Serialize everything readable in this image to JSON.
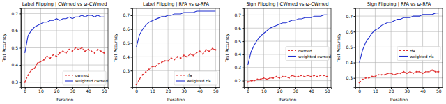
{
  "chart_data": [
    {
      "type": "line",
      "title": "Label Flipping | CWmed vs ω-CWmed",
      "x_label": "Iteration",
      "y_label": "Test Accuracy",
      "x": [
        0,
        2,
        4,
        6,
        8,
        10,
        12,
        14,
        16,
        18,
        20,
        22,
        24,
        26,
        28,
        30,
        32,
        34,
        36,
        38,
        40,
        42,
        44,
        46,
        48,
        50
      ],
      "xlim": [
        -2.5,
        52.5
      ],
      "xticks": [
        0,
        10,
        20,
        30,
        40,
        50
      ],
      "ylim": [
        0.27,
        0.73
      ],
      "yticks": [
        0.3,
        0.4,
        0.5,
        0.6,
        0.7
      ],
      "grid": true,
      "legend": "lower right",
      "series": [
        {
          "name": "cwmed",
          "color": "#e03030",
          "line_style": "dashed",
          "marker": "circle",
          "values": [
            0.3,
            0.34,
            0.37,
            0.38,
            0.41,
            0.42,
            0.43,
            0.45,
            0.44,
            0.46,
            0.45,
            0.47,
            0.48,
            0.47,
            0.49,
            0.48,
            0.5,
            0.49,
            0.5,
            0.48,
            0.49,
            0.48,
            0.47,
            0.49,
            0.48,
            0.47
          ]
        },
        {
          "name": "weighted cwmed",
          "color": "#1f2fd0",
          "line_style": "solid",
          "values": [
            0.47,
            0.57,
            0.6,
            0.62,
            0.63,
            0.64,
            0.65,
            0.65,
            0.66,
            0.66,
            0.67,
            0.66,
            0.67,
            0.67,
            0.68,
            0.67,
            0.68,
            0.68,
            0.69,
            0.68,
            0.69,
            0.69,
            0.68,
            0.69,
            0.68,
            0.68
          ]
        }
      ]
    },
    {
      "type": "line",
      "title": "Label Flipping | RFA vs ω-RFA",
      "x_label": "Iteration",
      "y_label": "Test Accuracy",
      "x": [
        0,
        2,
        4,
        6,
        8,
        10,
        12,
        14,
        16,
        18,
        20,
        22,
        24,
        26,
        28,
        30,
        32,
        34,
        36,
        38,
        40,
        42,
        44,
        46,
        48,
        50
      ],
      "xlim": [
        -2.5,
        52.5
      ],
      "xticks": [
        0,
        10,
        20,
        30,
        40,
        50
      ],
      "ylim": [
        0.18,
        0.75
      ],
      "yticks": [
        0.3,
        0.4,
        0.5,
        0.6,
        0.7
      ],
      "grid": true,
      "legend": "lower right",
      "series": [
        {
          "name": "rfa",
          "color": "#e03030",
          "line_style": "dashed",
          "marker": "circle",
          "values": [
            0.2,
            0.24,
            0.27,
            0.29,
            0.31,
            0.33,
            0.33,
            0.35,
            0.36,
            0.37,
            0.37,
            0.39,
            0.38,
            0.4,
            0.39,
            0.41,
            0.4,
            0.42,
            0.41,
            0.43,
            0.44,
            0.42,
            0.45,
            0.44,
            0.46,
            0.45
          ]
        },
        {
          "name": "weighted rfa",
          "color": "#1f2fd0",
          "line_style": "solid",
          "values": [
            0.47,
            0.56,
            0.6,
            0.63,
            0.65,
            0.66,
            0.67,
            0.68,
            0.69,
            0.69,
            0.7,
            0.7,
            0.71,
            0.71,
            0.71,
            0.72,
            0.72,
            0.72,
            0.72,
            0.73,
            0.73,
            0.73,
            0.73,
            0.73,
            0.73,
            0.73
          ]
        }
      ]
    },
    {
      "type": "line",
      "title": "Sign Flipping | CWmed vs ω-CWmed",
      "x_label": "Iteration",
      "y_label": "Test Accuracy",
      "x": [
        0,
        2,
        4,
        6,
        8,
        10,
        12,
        14,
        16,
        18,
        20,
        22,
        24,
        26,
        28,
        30,
        32,
        34,
        36,
        38,
        40,
        42,
        44,
        46,
        48,
        50
      ],
      "xlim": [
        -2.5,
        52.5
      ],
      "xticks": [
        0,
        10,
        20,
        30,
        40,
        50
      ],
      "ylim": [
        0.15,
        0.75
      ],
      "yticks": [
        0.2,
        0.3,
        0.4,
        0.5,
        0.6,
        0.7
      ],
      "grid": true,
      "legend": "center right",
      "series": [
        {
          "name": "cwmed",
          "color": "#e03030",
          "line_style": "dashed",
          "marker": "circle",
          "values": [
            0.19,
            0.2,
            0.2,
            0.21,
            0.21,
            0.22,
            0.21,
            0.22,
            0.22,
            0.23,
            0.22,
            0.23,
            0.23,
            0.22,
            0.24,
            0.23,
            0.23,
            0.24,
            0.23,
            0.24,
            0.23,
            0.24,
            0.23,
            0.24,
            0.24,
            0.23
          ]
        },
        {
          "name": "weighted cwmed",
          "color": "#1f2fd0",
          "line_style": "solid",
          "values": [
            0.32,
            0.42,
            0.47,
            0.51,
            0.54,
            0.56,
            0.58,
            0.6,
            0.61,
            0.62,
            0.63,
            0.64,
            0.64,
            0.65,
            0.66,
            0.66,
            0.67,
            0.67,
            0.68,
            0.68,
            0.68,
            0.69,
            0.69,
            0.69,
            0.7,
            0.7
          ]
        }
      ]
    },
    {
      "type": "line",
      "title": "Sign Flipping | RFA vs ω-RFA",
      "x_label": "Iteration",
      "y_label": "Test Accuracy",
      "x": [
        0,
        2,
        4,
        6,
        8,
        10,
        12,
        14,
        16,
        18,
        20,
        22,
        24,
        26,
        28,
        30,
        32,
        34,
        36,
        38,
        40,
        42,
        44,
        46,
        48,
        50
      ],
      "xlim": [
        -2.5,
        52.5
      ],
      "xticks": [
        0,
        10,
        20,
        30,
        40,
        50
      ],
      "ylim": [
        0.24,
        0.75
      ],
      "yticks": [
        0.3,
        0.4,
        0.5,
        0.6,
        0.7
      ],
      "grid": true,
      "legend": "center right",
      "series": [
        {
          "name": "rfa",
          "color": "#e03030",
          "line_style": "dashed",
          "marker": "circle",
          "values": [
            0.27,
            0.29,
            0.3,
            0.3,
            0.31,
            0.31,
            0.32,
            0.32,
            0.32,
            0.33,
            0.33,
            0.32,
            0.33,
            0.33,
            0.34,
            0.33,
            0.34,
            0.33,
            0.34,
            0.34,
            0.33,
            0.34,
            0.34,
            0.35,
            0.34,
            0.34
          ]
        },
        {
          "name": "weighted rfa",
          "color": "#1f2fd0",
          "line_style": "solid",
          "values": [
            0.4,
            0.48,
            0.53,
            0.56,
            0.59,
            0.61,
            0.62,
            0.64,
            0.65,
            0.66,
            0.66,
            0.67,
            0.68,
            0.68,
            0.69,
            0.69,
            0.69,
            0.7,
            0.7,
            0.7,
            0.71,
            0.71,
            0.71,
            0.71,
            0.72,
            0.72
          ]
        }
      ]
    }
  ]
}
